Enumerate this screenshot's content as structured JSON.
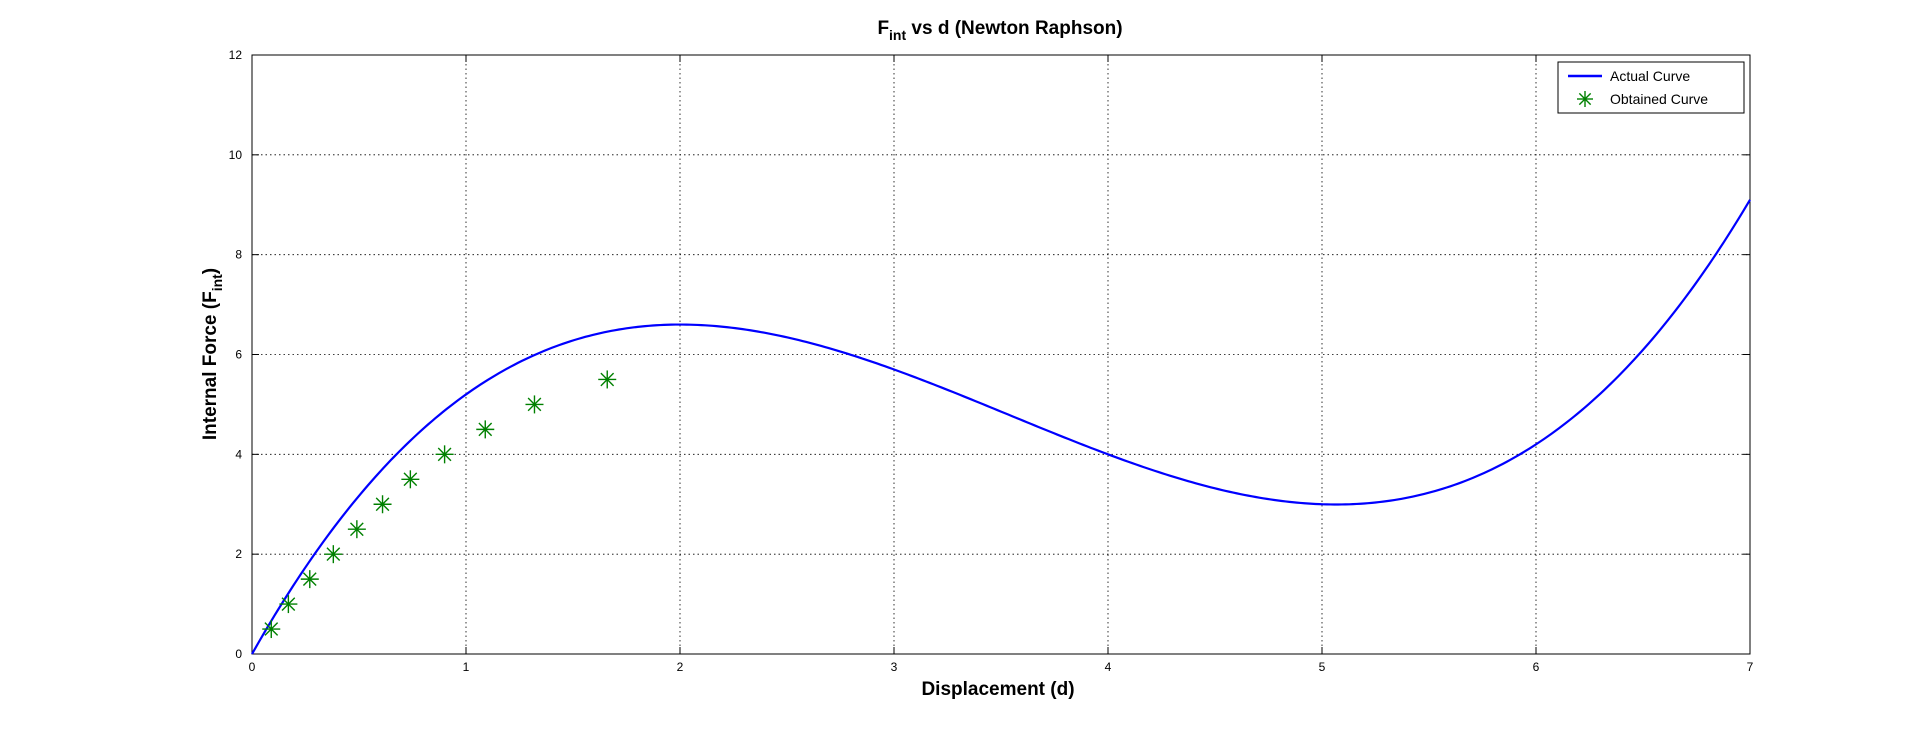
{
  "chart_data": {
    "type": "line",
    "title": {
      "main": "F",
      "sub": "int",
      "rest": " vs d (Newton Raphson)"
    },
    "xlabel": "Displacement (d)",
    "ylabel": {
      "main": "Internal Force (F",
      "sub": "int",
      "rest": ")"
    },
    "xlim": [
      0,
      7
    ],
    "ylim": [
      0,
      12
    ],
    "xticks": [
      "0",
      "1",
      "2",
      "3",
      "4",
      "5",
      "6",
      "7"
    ],
    "yticks": [
      "0",
      "2",
      "4",
      "6",
      "8",
      "10",
      "12"
    ],
    "grid": true,
    "legend_position": "top-right",
    "series": [
      {
        "name": "Actual Curve",
        "style": "line",
        "color": "#0000ff",
        "function_coefficients": {
          "a3": 0.25,
          "a2": -2.65,
          "a1": 7.6,
          "a0": 0
        },
        "x_range": [
          0,
          7
        ]
      },
      {
        "name": "Obtained Curve",
        "style": "marker-asterisk",
        "color": "#008000",
        "x": [
          0.09,
          0.17,
          0.27,
          0.38,
          0.49,
          0.61,
          0.74,
          0.9,
          1.09,
          1.32,
          1.66
        ],
        "y": [
          0.5,
          1.0,
          1.5,
          2.0,
          2.5,
          3.0,
          3.5,
          4.0,
          4.5,
          5.0,
          5.5
        ]
      }
    ]
  }
}
